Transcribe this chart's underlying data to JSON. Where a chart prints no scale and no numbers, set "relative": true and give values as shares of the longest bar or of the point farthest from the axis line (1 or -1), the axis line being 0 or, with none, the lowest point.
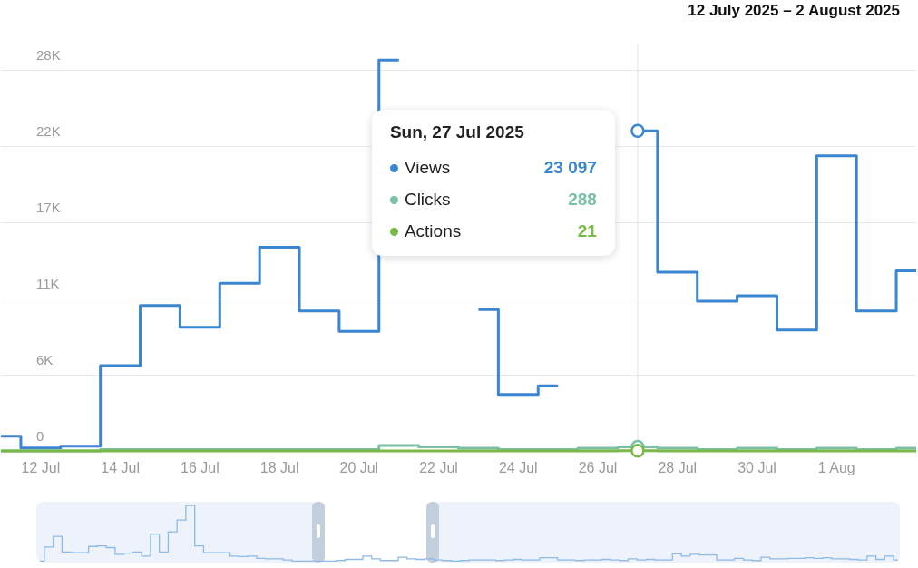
{
  "chart_data": [
    {
      "type": "step",
      "title": "12 July 2025 – 2 August 2025",
      "marker": "none",
      "grid": "y",
      "x": [
        "2025-07-11",
        "2025-07-12",
        "2025-07-13",
        "2025-07-14",
        "2025-07-15",
        "2025-07-16",
        "2025-07-17",
        "2025-07-18",
        "2025-07-19",
        "2025-07-20",
        "2025-07-21",
        "2025-07-22",
        "2025-07-23",
        "2025-07-24",
        "2025-07-25",
        "2025-07-26",
        "2025-07-27",
        "2025-07-28",
        "2025-07-29",
        "2025-07-30",
        "2025-07-31",
        "2025-08-01",
        "2025-08-02",
        "2025-08-03"
      ],
      "xlim": [
        "2025-07-11",
        "2025-08-03"
      ],
      "legend": "top",
      "xticks": [
        {
          "value": "2025-07-12",
          "label": "12 Jul"
        },
        {
          "value": "2025-07-14",
          "label": "14 Jul"
        },
        {
          "value": "2025-07-16",
          "label": "16 Jul"
        },
        {
          "value": "2025-07-18",
          "label": "18 Jul"
        },
        {
          "value": "2025-07-20",
          "label": "20 Jul"
        },
        {
          "value": "2025-07-22",
          "label": "22 Jul"
        },
        {
          "value": "2025-07-24",
          "label": "24 Jul"
        },
        {
          "value": "2025-07-26",
          "label": "26 Jul"
        },
        {
          "value": "2025-07-28",
          "label": "28 Jul"
        },
        {
          "value": "2025-07-30",
          "label": "30 Jul"
        },
        {
          "value": "2025-08-01",
          "label": "1 Aug"
        }
      ],
      "ylim": [
        0,
        29400
      ],
      "yticks": [
        0,
        {
          "value": 5500,
          "label": "6K"
        },
        {
          "value": 11000,
          "label": "11K"
        },
        {
          "value": 16500,
          "label": "17K"
        },
        {
          "value": 22000,
          "label": "22K"
        },
        {
          "value": 27500,
          "label": "28K"
        }
      ],
      "ref_lines": [
        {
          "axis": "x",
          "value": "2025-07-27",
          "color": "#dde1e6"
        }
      ],
      "annotations": [
        "Sun, 27 Jul 2025",
        "23 097",
        "288",
        "21"
      ],
      "series": [
        {
          "name": "Views",
          "color": "#3a86d0",
          "values": [
            1070,
            220,
            350,
            6150,
            10500,
            8920,
            12100,
            14700,
            10100,
            8630,
            28200,
            null,
            10200,
            4080,
            4690,
            null,
            23097,
            12900,
            10800,
            11200,
            8720,
            21300,
            10100,
            13000
          ]
        },
        {
          "name": "Clicks",
          "color": "#79c0a4",
          "values": [
            0,
            0,
            0,
            100,
            100,
            100,
            100,
            100,
            100,
            100,
            400,
            300,
            200,
            100,
            100,
            200,
            288,
            200,
            100,
            200,
            100,
            200,
            100,
            200
          ]
        },
        {
          "name": "Actions",
          "color": "#7ab947",
          "values": [
            0,
            0,
            0,
            0,
            0,
            0,
            0,
            0,
            0,
            0,
            0,
            0,
            0,
            0,
            0,
            0,
            21,
            0,
            0,
            0,
            0,
            0,
            0,
            0
          ]
        }
      ]
    },
    {
      "type": "step",
      "relative": true,
      "marker": "none",
      "categories": [
        null,
        null,
        null,
        null,
        null,
        null,
        null,
        null,
        null,
        null,
        null,
        null,
        null,
        null,
        null,
        null,
        null,
        null,
        null,
        null,
        null,
        null,
        null,
        null,
        null,
        null,
        null,
        null,
        null,
        null,
        null,
        null,
        null,
        null,
        null,
        null,
        null,
        null,
        null,
        null,
        null,
        null,
        null,
        null,
        null,
        null,
        null,
        null,
        null,
        null,
        null,
        null,
        null,
        null,
        null,
        null,
        null,
        null,
        null,
        null,
        null,
        null,
        null,
        null,
        null,
        null,
        null,
        null,
        null,
        null,
        null,
        null,
        null,
        null,
        null,
        null,
        null,
        null,
        null,
        null,
        null,
        null,
        null,
        null,
        null,
        null,
        null,
        null,
        null,
        null,
        null,
        null,
        null,
        null,
        null,
        null,
        null,
        null
      ],
      "series": [
        {
          "color": "#8cbbe8",
          "values": [
            0.01,
            0.26,
            0.45,
            0.17,
            0.16,
            0.16,
            0.27,
            0.28,
            0.25,
            0.13,
            0.15,
            0.17,
            0.1,
            0.49,
            0.17,
            0.53,
            0.74,
            1.0,
            0.28,
            0.16,
            0.16,
            0.16,
            0.1,
            0.09,
            0.1,
            0.06,
            0.05,
            0.05,
            0.03,
            0.01,
            0.01,
            0.01,
            0.01,
            0.01,
            0.02,
            0.04,
            0.04,
            0.1,
            0.05,
            0.02,
            0.02,
            0.08,
            0.05,
            0.04,
            0.05,
            0.03,
            0.02,
            0.01,
            0.02,
            0.03,
            0.03,
            0.03,
            0.02,
            0.03,
            0.04,
            0.03,
            0.03,
            0.07,
            0.07,
            0.03,
            0.03,
            0.02,
            0.03,
            0.03,
            0.04,
            0.03,
            0.02,
            0.05,
            0.03,
            0.04,
            0.03,
            0.03,
            0.14,
            0.1,
            0.13,
            0.12,
            0.12,
            0.03,
            0.03,
            0.06,
            0.03,
            0.02,
            0.08,
            0.05,
            0.05,
            0.06,
            0.06,
            0.07,
            0.06,
            0.07,
            0.05,
            0.05,
            0.04,
            0.03,
            0.1,
            0.04,
            0.1,
            0.03
          ]
        }
      ]
    }
  ]
}
